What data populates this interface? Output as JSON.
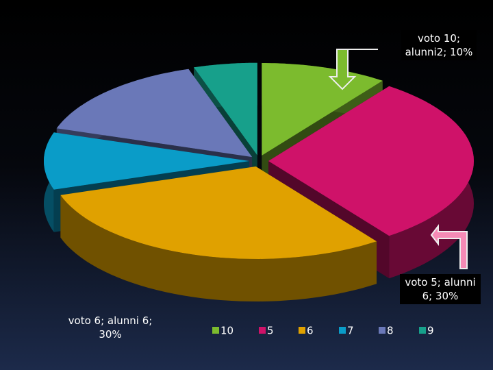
{
  "chart_data": {
    "type": "pie3d",
    "categories": [
      "10",
      "5",
      "6",
      "7",
      "8",
      "9"
    ],
    "values": [
      10,
      30,
      30,
      10,
      15,
      5
    ],
    "value_labels": [
      "voto 10; alunni2; 10%",
      "voto 5; alunni 6; 30%",
      "voto 6; alunni 6; 30%",
      null,
      null,
      null
    ],
    "colors": [
      "#7cbb2e",
      "#cf1269",
      "#e0a100",
      "#0a9cc8",
      "#6a78b8",
      "#17a08b"
    ]
  }
}
